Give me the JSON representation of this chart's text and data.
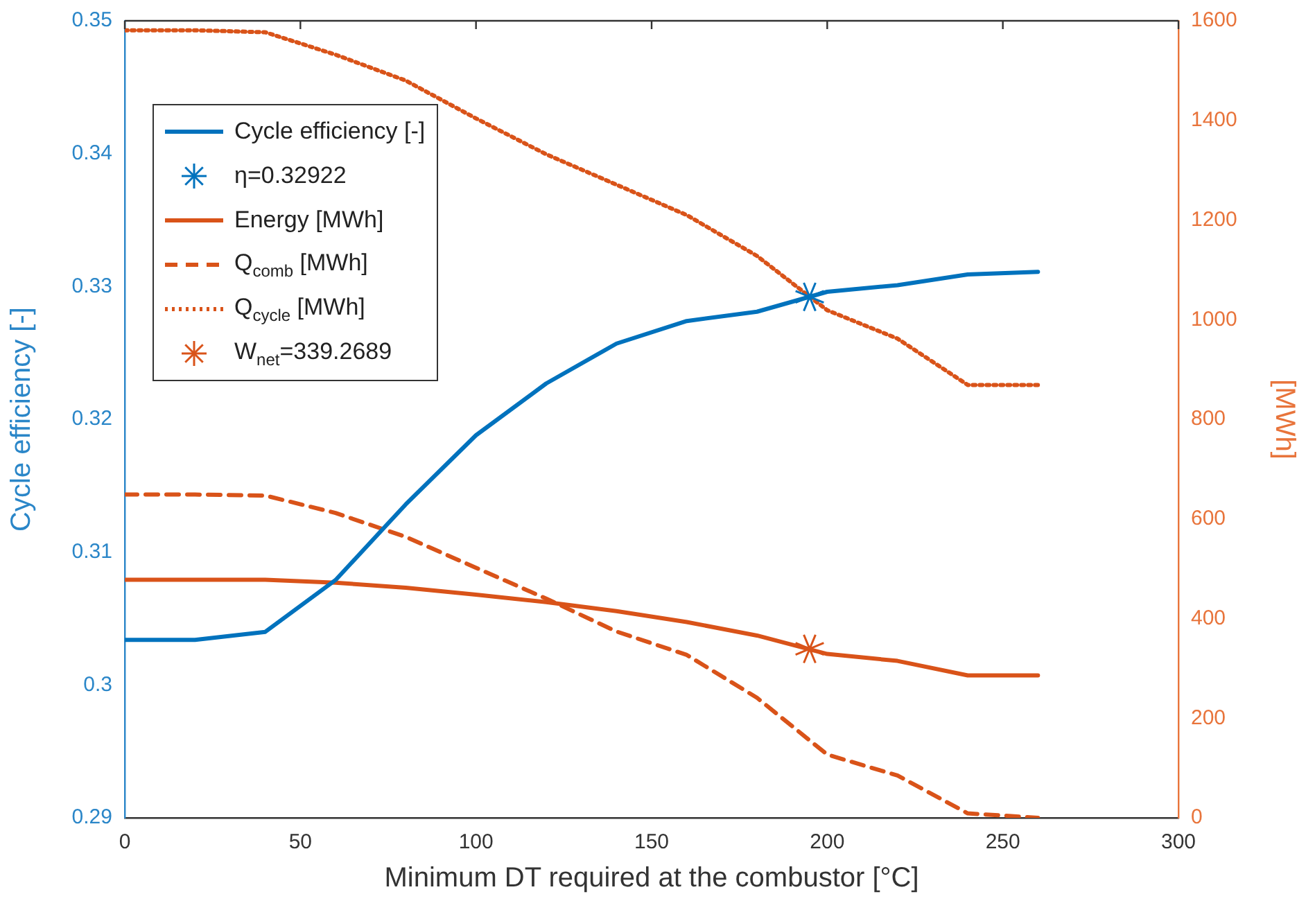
{
  "chart_data": {
    "type": "line",
    "xlabel": "Minimum DT required at the combustor [°C]",
    "ylabel": "Cycle efficiency [-]",
    "y2label": "[MWh]",
    "x": [
      0,
      20,
      40,
      60,
      80,
      100,
      120,
      140,
      160,
      180,
      200,
      220,
      240,
      260
    ],
    "series": [
      {
        "name": "Cycle efficiency [-]",
        "color": "#0072bd",
        "line_style": "solid",
        "marker": "none",
        "values": [
          0.3034,
          0.3034,
          0.304,
          0.3079,
          0.3136,
          0.3188,
          0.3227,
          0.3257,
          0.3274,
          0.3281,
          0.3296,
          0.3301,
          0.3309,
          0.3311
        ]
      },
      {
        "name": "η=0.32922",
        "type": "scatter",
        "color": "#0072bd",
        "marker": "cross",
        "x": [
          195
        ],
        "values": [
          0.32922
        ]
      },
      {
        "name": "Energy [MWh]",
        "color": "#d95319",
        "axis": "y2",
        "line_style": "solid",
        "marker": "none",
        "values": [
          478,
          478,
          478,
          472,
          462,
          448,
          433,
          415,
          393,
          366,
          329,
          315,
          286,
          286
        ]
      },
      {
        "name": "Q$_{comb}$ [MWh]",
        "color": "#d95319",
        "axis": "y2",
        "line_style": "dashed",
        "marker": "none",
        "values": [
          649,
          649,
          647,
          612,
          564,
          502,
          440,
          374,
          327,
          241,
          127,
          85,
          9,
          0
        ]
      },
      {
        "name": "Q$_{cycle}$ [MWh]",
        "color": "#d95319",
        "axis": "y2",
        "line_style": "dotted",
        "marker": "none",
        "values": [
          1581,
          1581,
          1577,
          1532,
          1480,
          1404,
          1332,
          1271,
          1210,
          1128,
          1019,
          962,
          869,
          869
        ]
      },
      {
        "name": "W$_{net}$=339.2689",
        "type": "scatter",
        "color": "#d95319",
        "axis": "y2",
        "marker": "cross",
        "x": [
          195
        ],
        "values": [
          339.2689
        ]
      }
    ],
    "xlim": [
      0,
      300
    ],
    "xticks": [
      0,
      50,
      100,
      150,
      200,
      250,
      300
    ],
    "ylim": [
      0.29,
      0.35
    ],
    "yticks": [
      0.29,
      0.3,
      0.31,
      0.32,
      0.33,
      0.34,
      0.35
    ],
    "y2lim": [
      0,
      1600
    ],
    "y2ticks": [
      0,
      200,
      400,
      600,
      800,
      1000,
      1200,
      1400,
      1600
    ],
    "grid": false,
    "legend": "top left"
  }
}
